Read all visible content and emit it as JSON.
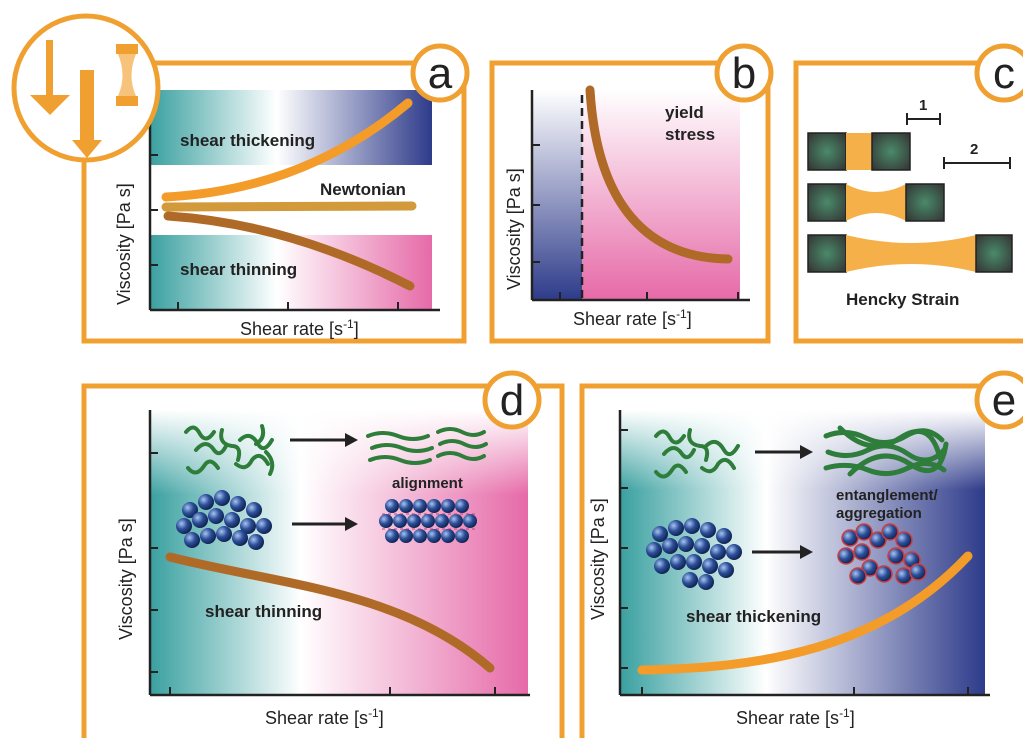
{
  "panels": {
    "a": {
      "letter": "a",
      "ylabel": "Viscosity [Pa s]",
      "xlabel": "Shear rate [s",
      "xlabel_sup": "-1",
      "xlabel_end": "]",
      "labels": [
        "shear thickening",
        "Newtonian",
        "shear thinning"
      ]
    },
    "b": {
      "letter": "b",
      "ylabel": "Viscosity [Pa s]",
      "xlabel": "Shear rate [s",
      "xlabel_sup": "-1",
      "xlabel_end": "]",
      "label_line1": "yield",
      "label_line2": "stress"
    },
    "c": {
      "letter": "c",
      "scale1": "1",
      "scale2": "2",
      "caption": "Hencky Strain"
    },
    "d": {
      "letter": "d",
      "ylabel": "Viscosity [Pa s]",
      "xlabel": "Shear rate [s",
      "xlabel_sup": "-1",
      "xlabel_end": "]",
      "label_alignment": "alignment",
      "label_curve": "shear thinning"
    },
    "e": {
      "letter": "e",
      "ylabel": "Viscosity [Pa s]",
      "xlabel": "Shear rate [s",
      "xlabel_sup": "-1",
      "xlabel_end": "]",
      "label_line1": "entanglement/",
      "label_line2": "aggregation",
      "label_curve": "shear thickening"
    }
  },
  "colors": {
    "frame": "#f0a030",
    "orange_curve": "#f39c2a",
    "brown_curve": "#b06a28",
    "teal": "#3aa0a0",
    "navy": "#2e3b8a",
    "pink": "#e66aa8",
    "polymer": "#2f7d3a",
    "particle": "#2c4f9a"
  }
}
